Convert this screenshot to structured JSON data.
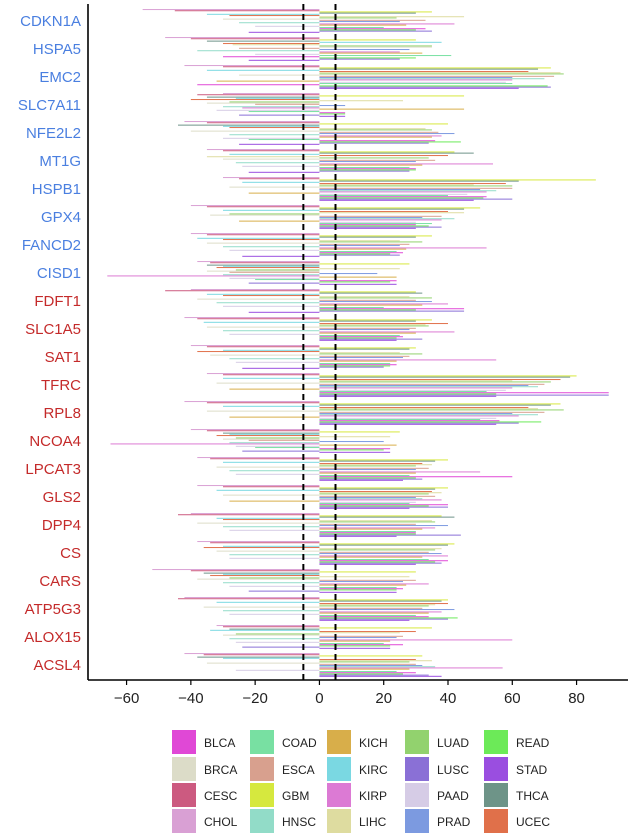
{
  "colors": {
    "up_gene": "#4a7fe0",
    "down_gene": "#c42a2a",
    "axis": "#000000",
    "threshold_line": "#000000"
  },
  "chart_data": {
    "type": "bar",
    "orientation": "horizontal",
    "title": "",
    "xlabel": "",
    "ylabel": "",
    "xlim": [
      -72,
      96
    ],
    "xticks": [
      -60,
      -40,
      -20,
      0,
      20,
      40,
      60,
      80
    ],
    "threshold_lines": [
      -5,
      5
    ],
    "genes": [
      {
        "name": "CDKN1A",
        "group": "up"
      },
      {
        "name": "HSPA5",
        "group": "up"
      },
      {
        "name": "EMC2",
        "group": "up"
      },
      {
        "name": "SLC7A11",
        "group": "up"
      },
      {
        "name": "NFE2L2",
        "group": "up"
      },
      {
        "name": "MT1G",
        "group": "up"
      },
      {
        "name": "HSPB1",
        "group": "up"
      },
      {
        "name": "GPX4",
        "group": "up"
      },
      {
        "name": "FANCD2",
        "group": "up"
      },
      {
        "name": "CISD1",
        "group": "up"
      },
      {
        "name": "FDFT1",
        "group": "down"
      },
      {
        "name": "SLC1A5",
        "group": "down"
      },
      {
        "name": "SAT1",
        "group": "down"
      },
      {
        "name": "TFRC",
        "group": "down"
      },
      {
        "name": "RPL8",
        "group": "down"
      },
      {
        "name": "NCOA4",
        "group": "down"
      },
      {
        "name": "LPCAT3",
        "group": "down"
      },
      {
        "name": "GLS2",
        "group": "down"
      },
      {
        "name": "DPP4",
        "group": "down"
      },
      {
        "name": "CS",
        "group": "down"
      },
      {
        "name": "CARS",
        "group": "down"
      },
      {
        "name": "ATP5G3",
        "group": "down"
      },
      {
        "name": "ALOX15",
        "group": "down"
      },
      {
        "name": "ACSL4",
        "group": "down"
      }
    ],
    "cancers": [
      {
        "name": "BLCA",
        "color": "#e048d6"
      },
      {
        "name": "BRCA",
        "color": "#dcdcc8"
      },
      {
        "name": "CESC",
        "color": "#cc5a80"
      },
      {
        "name": "CHOL",
        "color": "#d9a0d4"
      },
      {
        "name": "COAD",
        "color": "#78e0a2"
      },
      {
        "name": "ESCA",
        "color": "#d8a08e"
      },
      {
        "name": "GBM",
        "color": "#d6e83e"
      },
      {
        "name": "HNSC",
        "color": "#92dcc8"
      },
      {
        "name": "KICH",
        "color": "#d8ae4a"
      },
      {
        "name": "KIRC",
        "color": "#7ad8e2"
      },
      {
        "name": "KIRP",
        "color": "#dc7ad4"
      },
      {
        "name": "LIHC",
        "color": "#dedca0"
      },
      {
        "name": "LUAD",
        "color": "#92d26e"
      },
      {
        "name": "LUSC",
        "color": "#8a70d6"
      },
      {
        "name": "PAAD",
        "color": "#d6cce6"
      },
      {
        "name": "PRAD",
        "color": "#7c9ae0"
      },
      {
        "name": "READ",
        "color": "#6cea58"
      },
      {
        "name": "STAD",
        "color": "#9a4ee0"
      },
      {
        "name": "THCA",
        "color": "#6e9488"
      },
      {
        "name": "UCEC",
        "color": "#e0704a"
      }
    ],
    "series_order": [
      "CHOL",
      "CESC",
      "GBM",
      "THCA",
      "KIRC",
      "UCEC",
      "LIHC",
      "LUAD",
      "BRCA",
      "ESCA",
      "PRAD",
      "HNSC",
      "KIRP",
      "KICH",
      "PAAD",
      "COAD",
      "BLCA",
      "READ",
      "LUSC",
      "STAD"
    ],
    "values": {
      "CDKN1A": [
        -55,
        -45,
        35,
        30,
        -35,
        -28,
        45,
        24,
        -30,
        33,
        25,
        -25,
        42,
        27,
        -20,
        20,
        33,
        30,
        35,
        -22
      ],
      "HSPA5": [
        -48,
        -40,
        30,
        -35,
        38,
        -30,
        -27,
        35,
        35,
        -25,
        28,
        -38,
        25,
        32,
        -20,
        41,
        -30,
        30,
        25,
        -22
      ],
      "EMC2": [
        -42,
        -30,
        72,
        68,
        -35,
        65,
        75,
        76,
        -25,
        73,
        60,
        70,
        60,
        -32,
        58,
        60,
        -38,
        71,
        72,
        62
      ],
      "SLC7A11": [
        -30,
        -38,
        45,
        -35,
        -26,
        -40,
        26,
        -28,
        -35,
        -20,
        8,
        -30,
        -24,
        45,
        -32,
        -22,
        8,
        8,
        -25,
        8
      ],
      "NFE2L2": [
        -42,
        -35,
        40,
        -44,
        -30,
        -28,
        33,
        35,
        -40,
        37,
        42,
        -28,
        38,
        35,
        -30,
        -22,
        36,
        44,
        34,
        -25
      ],
      "MT1G": [
        -35,
        -30,
        42,
        48,
        -28,
        40,
        -35,
        34,
        -30,
        36,
        30,
        -26,
        54,
        32,
        -24,
        28,
        30,
        30,
        28,
        -22
      ],
      "HSPB1": [
        -30,
        -25,
        86,
        62,
        -24,
        58,
        48,
        60,
        -28,
        60,
        50,
        55,
        52,
        -22,
        46,
        40,
        52,
        51,
        60,
        48
      ],
      "GPX4": [
        -40,
        -35,
        50,
        45,
        -30,
        40,
        45,
        -28,
        -34,
        38,
        32,
        42,
        38,
        -25,
        30,
        35,
        30,
        34,
        38,
        30
      ],
      "FANCD2": [
        -40,
        -35,
        35,
        30,
        -38,
        -30,
        25,
        32,
        -35,
        28,
        25,
        -30,
        52,
        27,
        -28,
        24,
        26,
        22,
        25,
        -24
      ],
      "CISD1": [
        -38,
        -34,
        28,
        -35,
        -30,
        -32,
        25,
        -26,
        -35,
        -28,
        18,
        -30,
        -66,
        24,
        -28,
        -20,
        24,
        22,
        -22,
        24
      ],
      "FDFT1": [
        -40,
        -48,
        30,
        32,
        -35,
        -30,
        28,
        35,
        -38,
        30,
        35,
        -32,
        40,
        32,
        -30,
        20,
        45,
        30,
        45,
        -22
      ],
      "SLC1A5": [
        -42,
        -38,
        35,
        30,
        -36,
        40,
        33,
        34,
        -35,
        30,
        28,
        -30,
        42,
        30,
        -28,
        25,
        26,
        24,
        32,
        24
      ],
      "SAT1": [
        -40,
        -35,
        30,
        28,
        -30,
        -38,
        25,
        32,
        -34,
        28,
        26,
        -28,
        55,
        24,
        -26,
        22,
        24,
        22,
        20,
        -24
      ],
      "TFRC": [
        -35,
        -30,
        80,
        78,
        -30,
        75,
        60,
        72,
        -32,
        70,
        65,
        68,
        60,
        -28,
        58,
        52,
        90,
        55,
        90,
        55
      ],
      "RPL8": [
        -42,
        -35,
        75,
        72,
        -30,
        65,
        68,
        76,
        -35,
        70,
        60,
        68,
        62,
        -28,
        55,
        50,
        56,
        69,
        62,
        55
      ],
      "NCOA4": [
        -40,
        -35,
        25,
        -30,
        -28,
        -32,
        22,
        -26,
        -30,
        -22,
        20,
        -28,
        -65,
        24,
        -26,
        -20,
        22,
        20,
        -24,
        22
      ],
      "LPCAT3": [
        -38,
        -34,
        40,
        36,
        -30,
        32,
        35,
        30,
        -32,
        34,
        30,
        -28,
        50,
        30,
        -26,
        28,
        60,
        30,
        32,
        26
      ],
      "GLS2": [
        -38,
        -30,
        40,
        36,
        -32,
        35,
        38,
        34,
        -30,
        36,
        30,
        32,
        38,
        -28,
        30,
        28,
        40,
        34,
        40,
        28
      ],
      "DPP4": [
        -40,
        -44,
        38,
        42,
        -32,
        -30,
        35,
        36,
        -38,
        30,
        40,
        -30,
        36,
        32,
        -28,
        30,
        30,
        30,
        44,
        24
      ],
      "CS": [
        -38,
        -34,
        42,
        40,
        -30,
        -36,
        38,
        36,
        -32,
        34,
        38,
        -28,
        40,
        32,
        -28,
        34,
        40,
        36,
        38,
        30
      ],
      "CARS": [
        -52,
        -40,
        30,
        -36,
        -30,
        -34,
        28,
        -28,
        -38,
        30,
        26,
        -30,
        34,
        27,
        -28,
        24,
        26,
        24,
        -22,
        24
      ],
      "ATP5G3": [
        -42,
        -44,
        40,
        38,
        -32,
        40,
        36,
        34,
        -36,
        32,
        42,
        -30,
        38,
        34,
        -28,
        30,
        34,
        43,
        40,
        28
      ],
      "ALOX15": [
        -32,
        -30,
        35,
        -28,
        -34,
        30,
        25,
        -26,
        -30,
        26,
        24,
        -28,
        60,
        22,
        -26,
        20,
        26,
        22,
        -24,
        22
      ],
      "ACSL4": [
        -42,
        -36,
        32,
        -38,
        -30,
        30,
        35,
        28,
        -35,
        30,
        32,
        36,
        57,
        28,
        -26,
        24,
        30,
        26,
        34,
        38
      ]
    }
  }
}
